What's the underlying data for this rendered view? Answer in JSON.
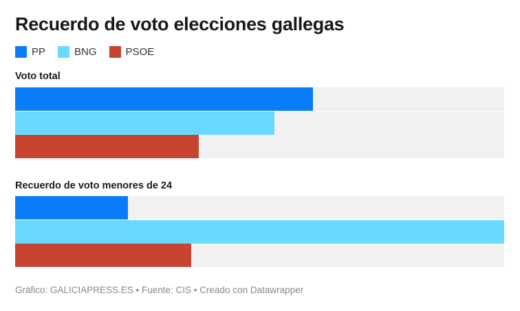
{
  "chart_data": {
    "type": "bar",
    "orientation": "horizontal",
    "title": "Recuerdo de voto elecciones gallegas",
    "legend": {
      "placement": "top-left",
      "entries": [
        "PP",
        "BNG",
        "PSOE"
      ]
    },
    "series": [
      {
        "name": "PP",
        "color": "#0a7cf8"
      },
      {
        "name": "BNG",
        "color": "#69daff"
      },
      {
        "name": "PSOE",
        "color": "#c74431"
      }
    ],
    "groups": [
      {
        "label": "Voto total",
        "values": [
          60.9,
          53.0,
          37.6
        ]
      },
      {
        "label": "Recuerdo de voto menores de 24",
        "values": [
          23.1,
          100,
          36.0
        ]
      }
    ],
    "xlim": [
      0,
      100
    ],
    "track_color": "#f1f1f1",
    "axis_visible": false,
    "grid": false
  },
  "footer": "Gráfico: GALICIAPRESS.ES • Fuente: CIS • Creado con Datawrapper"
}
